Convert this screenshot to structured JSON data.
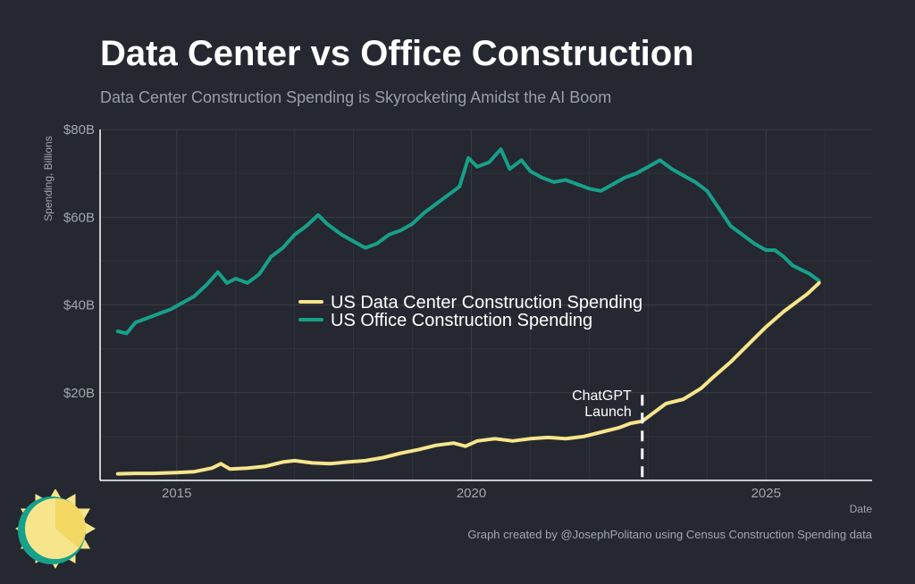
{
  "header": {
    "title": "Data Center vs Office Construction",
    "subtitle": "Data Center Construction Spending is Skyrocketing Amidst the AI Boom"
  },
  "footer": {
    "caption": "Graph created by @JosephPolitano using Census Construction Spending data"
  },
  "colors": {
    "background": "#252830",
    "grid": "#3a3d45",
    "axis": "#ffffff",
    "data_center": "#f7e58c",
    "office": "#17a08a"
  },
  "chart_data": {
    "type": "line",
    "xlabel": "Date",
    "ylabel": "Spending, Billions",
    "xlim": [
      2013.7,
      2026.8
    ],
    "ylim": [
      0,
      80
    ],
    "x_ticks": [
      {
        "value": 2015,
        "label": "2015"
      },
      {
        "value": 2020,
        "label": "2020"
      },
      {
        "value": 2025,
        "label": "2025"
      }
    ],
    "y_ticks": [
      {
        "value": 20,
        "label": "$20B"
      },
      {
        "value": 40,
        "label": "$40B"
      },
      {
        "value": 60,
        "label": "$60B"
      },
      {
        "value": 80,
        "label": "$80B"
      }
    ],
    "grid": true,
    "legend": {
      "position": "center-left"
    },
    "series": [
      {
        "name": "US Data Center Construction Spending",
        "color": "#f7e58c",
        "points": [
          [
            2014.0,
            1.5
          ],
          [
            2014.3,
            1.6
          ],
          [
            2014.6,
            1.6
          ],
          [
            2015.0,
            1.8
          ],
          [
            2015.3,
            2.0
          ],
          [
            2015.6,
            2.8
          ],
          [
            2015.75,
            3.8
          ],
          [
            2015.9,
            2.6
          ],
          [
            2016.2,
            2.8
          ],
          [
            2016.5,
            3.2
          ],
          [
            2016.8,
            4.2
          ],
          [
            2017.0,
            4.5
          ],
          [
            2017.3,
            4.0
          ],
          [
            2017.6,
            3.8
          ],
          [
            2017.9,
            4.2
          ],
          [
            2018.2,
            4.5
          ],
          [
            2018.5,
            5.2
          ],
          [
            2018.8,
            6.2
          ],
          [
            2019.1,
            7.0
          ],
          [
            2019.4,
            8.0
          ],
          [
            2019.7,
            8.5
          ],
          [
            2019.9,
            7.8
          ],
          [
            2020.1,
            9.0
          ],
          [
            2020.4,
            9.5
          ],
          [
            2020.7,
            9.0
          ],
          [
            2021.0,
            9.5
          ],
          [
            2021.3,
            9.8
          ],
          [
            2021.6,
            9.5
          ],
          [
            2021.9,
            10.0
          ],
          [
            2022.2,
            11.0
          ],
          [
            2022.5,
            12.0
          ],
          [
            2022.7,
            13.0
          ],
          [
            2022.9,
            13.5
          ],
          [
            2023.1,
            15.5
          ],
          [
            2023.3,
            17.5
          ],
          [
            2023.6,
            18.5
          ],
          [
            2023.9,
            21.0
          ],
          [
            2024.1,
            23.5
          ],
          [
            2024.4,
            27.0
          ],
          [
            2024.7,
            31.0
          ],
          [
            2025.0,
            35.0
          ],
          [
            2025.3,
            38.5
          ],
          [
            2025.5,
            40.5
          ],
          [
            2025.7,
            42.5
          ],
          [
            2025.9,
            45.0
          ]
        ]
      },
      {
        "name": "US Office Construction Spending",
        "color": "#17a08a",
        "points": [
          [
            2014.0,
            34
          ],
          [
            2014.15,
            33.5
          ],
          [
            2014.3,
            36
          ],
          [
            2014.5,
            37
          ],
          [
            2014.7,
            38
          ],
          [
            2014.9,
            39
          ],
          [
            2015.1,
            40.5
          ],
          [
            2015.3,
            42
          ],
          [
            2015.5,
            44.5
          ],
          [
            2015.7,
            47.5
          ],
          [
            2015.85,
            45
          ],
          [
            2016.0,
            46
          ],
          [
            2016.2,
            45
          ],
          [
            2016.4,
            47
          ],
          [
            2016.6,
            51
          ],
          [
            2016.8,
            53
          ],
          [
            2017.0,
            56
          ],
          [
            2017.2,
            58
          ],
          [
            2017.4,
            60.5
          ],
          [
            2017.55,
            58.5
          ],
          [
            2017.8,
            56
          ],
          [
            2018.0,
            54.5
          ],
          [
            2018.2,
            53
          ],
          [
            2018.4,
            54
          ],
          [
            2018.6,
            56
          ],
          [
            2018.8,
            57
          ],
          [
            2019.0,
            58.5
          ],
          [
            2019.2,
            61
          ],
          [
            2019.4,
            63
          ],
          [
            2019.6,
            65
          ],
          [
            2019.8,
            67
          ],
          [
            2019.95,
            73.5
          ],
          [
            2020.1,
            71.5
          ],
          [
            2020.3,
            72.5
          ],
          [
            2020.5,
            75.5
          ],
          [
            2020.65,
            71
          ],
          [
            2020.85,
            73
          ],
          [
            2021.0,
            70.5
          ],
          [
            2021.2,
            69
          ],
          [
            2021.4,
            68
          ],
          [
            2021.6,
            68.5
          ],
          [
            2021.8,
            67.5
          ],
          [
            2022.0,
            66.5
          ],
          [
            2022.2,
            66
          ],
          [
            2022.4,
            67.5
          ],
          [
            2022.6,
            69
          ],
          [
            2022.8,
            70
          ],
          [
            2023.0,
            71.5
          ],
          [
            2023.2,
            73
          ],
          [
            2023.4,
            71
          ],
          [
            2023.6,
            69.5
          ],
          [
            2023.8,
            68
          ],
          [
            2024.0,
            66
          ],
          [
            2024.2,
            62
          ],
          [
            2024.4,
            58
          ],
          [
            2024.6,
            56
          ],
          [
            2024.8,
            54
          ],
          [
            2025.0,
            52.5
          ],
          [
            2025.15,
            52.5
          ],
          [
            2025.3,
            51
          ],
          [
            2025.45,
            49
          ],
          [
            2025.6,
            48
          ],
          [
            2025.75,
            47
          ],
          [
            2025.9,
            45.5
          ]
        ]
      }
    ],
    "annotations": [
      {
        "x": 2022.9,
        "y_top": 19.5,
        "y_bottom": 0,
        "label_lines": [
          "ChatGPT",
          "Launch"
        ]
      }
    ]
  }
}
